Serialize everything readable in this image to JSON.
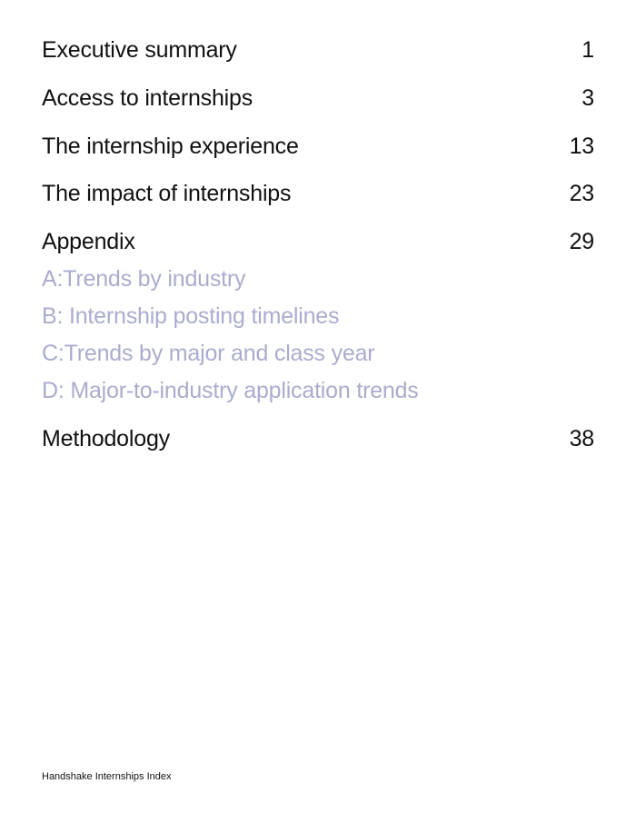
{
  "toc": {
    "entries": [
      {
        "title": "Executive summary",
        "page": "1"
      },
      {
        "title": "Access to internships",
        "page": "3"
      },
      {
        "title": "The internship experience",
        "page": "13"
      },
      {
        "title": "The impact of internships",
        "page": "23"
      },
      {
        "title": "Appendix",
        "page": "29"
      },
      {
        "title": "Methodology",
        "page": "38"
      }
    ],
    "appendix_items": [
      "A:Trends by industry",
      "B: Internship posting timelines",
      "C:Trends by major and class year",
      "D: Major-to-industry application trends"
    ],
    "appendix_color": "#a9acd0"
  },
  "footer": {
    "text": "Handshake Internships Index"
  }
}
